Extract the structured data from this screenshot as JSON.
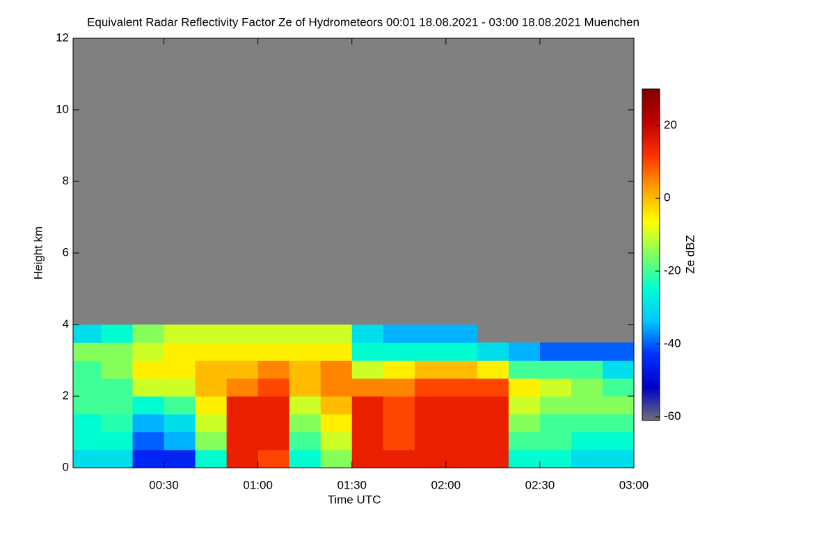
{
  "chart_data": {
    "type": "heatmap",
    "title": "Equivalent Radar Reflectivity Factor Ze of Hydrometeors   00:01 18.08.2021 - 03:00 18.08.2021 Muenchen",
    "x_label": "Time UTC",
    "y_label": "Height km",
    "colorbar_label": "Ze dBZ",
    "xlim": [
      1,
      180
    ],
    "xticks": [
      {
        "value": 30,
        "label": "00:30"
      },
      {
        "value": 60,
        "label": "01:00"
      },
      {
        "value": 90,
        "label": "01:30"
      },
      {
        "value": 120,
        "label": "02:00"
      },
      {
        "value": 150,
        "label": "02:30"
      },
      {
        "value": 180,
        "label": "03:00"
      }
    ],
    "ylim": [
      0,
      12
    ],
    "yticks": [
      0,
      2,
      4,
      6,
      8,
      10,
      12
    ],
    "clim": [
      -61,
      30
    ],
    "cticks": [
      -60,
      -40,
      -20,
      0,
      20
    ],
    "nan_color": "#808080",
    "colormap": [
      "#6e6e7a",
      "#0000c8",
      "#0030ff",
      "#00c8ff",
      "#00ffd0",
      "#80ff60",
      "#ffff00",
      "#ffa000",
      "#ff3000",
      "#c00000",
      "#800000"
    ],
    "x_edges": [
      1,
      10,
      20,
      30,
      40,
      50,
      60,
      70,
      80,
      90,
      100,
      110,
      120,
      130,
      140,
      150,
      160,
      170,
      180
    ],
    "y_edges": [
      0,
      0.5,
      1,
      1.5,
      2,
      2.5,
      3,
      3.5,
      4
    ],
    "z": [
      [
        -30,
        -30,
        -45,
        -45,
        -25,
        15,
        10,
        -25,
        -15,
        15,
        15,
        15,
        15,
        15,
        -25,
        -25,
        -30,
        -30
      ],
      [
        -25,
        -25,
        -40,
        -35,
        -15,
        15,
        15,
        -20,
        -10,
        15,
        10,
        15,
        15,
        15,
        -20,
        -20,
        -25,
        -25
      ],
      [
        -25,
        -22,
        -35,
        -30,
        -10,
        15,
        15,
        -15,
        -5,
        15,
        10,
        15,
        15,
        15,
        -15,
        -20,
        -20,
        -20
      ],
      [
        -20,
        -20,
        -25,
        -20,
        -5,
        15,
        15,
        -10,
        0,
        15,
        10,
        15,
        15,
        15,
        -10,
        -15,
        -15,
        -15
      ],
      [
        -20,
        -20,
        -10,
        -10,
        0,
        5,
        10,
        0,
        5,
        5,
        5,
        10,
        10,
        10,
        -5,
        -10,
        -15,
        -20
      ],
      [
        -20,
        -15,
        -5,
        -5,
        0,
        0,
        5,
        0,
        5,
        -10,
        -5,
        0,
        0,
        -5,
        -20,
        -20,
        -20,
        -30
      ],
      [
        -15,
        -15,
        -10,
        -5,
        -5,
        -5,
        -5,
        -5,
        -5,
        -25,
        -25,
        -25,
        -25,
        -30,
        -35,
        -40,
        -40,
        -40
      ],
      [
        -30,
        -25,
        -15,
        -10,
        -10,
        -10,
        -10,
        -10,
        -10,
        -30,
        -35,
        -35,
        -35,
        null,
        null,
        null,
        null,
        null
      ]
    ]
  }
}
